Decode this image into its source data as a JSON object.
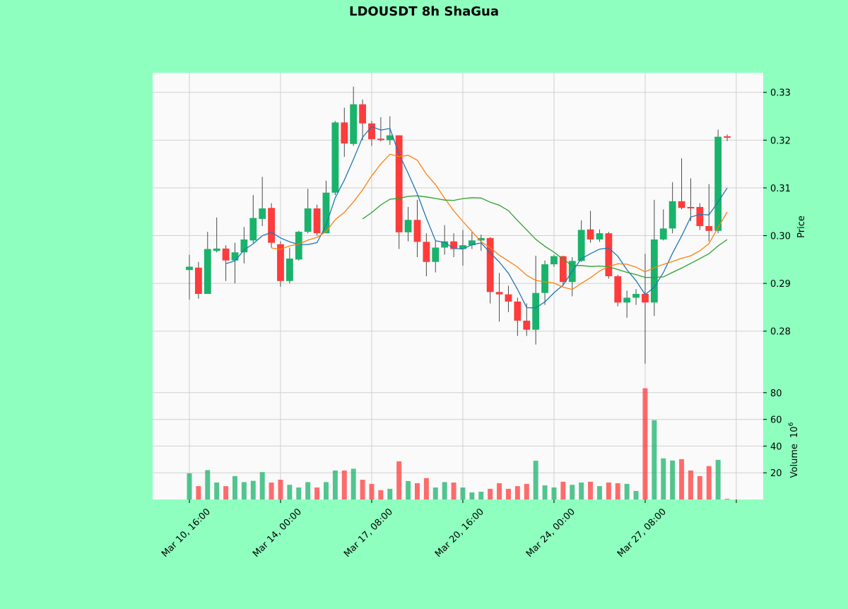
{
  "chart_data": {
    "type": "candlestick",
    "title": "LDOUSDT 8h ShaGua",
    "ylabel": "Price",
    "volume_label": "Volume",
    "volume_scale_base": "10",
    "volume_scale_exponent": "6",
    "up_color": "#19b36b",
    "down_color": "#ff3b3b",
    "wick_color": "#4a4a4a",
    "grid": true,
    "open": [
      0.2928,
      0.2933,
      0.2878,
      0.2968,
      0.2973,
      0.2948,
      0.2965,
      0.299,
      0.3035,
      0.3058,
      0.2982,
      0.2905,
      0.295,
      0.3008,
      0.3057,
      0.3005,
      0.309,
      0.3237,
      0.3192,
      0.3275,
      0.3235,
      0.3203,
      0.32,
      0.321,
      0.3007,
      0.3033,
      0.2987,
      0.2945,
      0.2975,
      0.2988,
      0.2972,
      0.298,
      0.299,
      0.2995,
      0.2882,
      0.2877,
      0.2862,
      0.2822,
      0.2803,
      0.288,
      0.294,
      0.2957,
      0.2903,
      0.2947,
      0.3013,
      0.2992,
      0.3005,
      0.2915,
      0.286,
      0.287,
      0.2878,
      0.286,
      0.2992,
      0.3015,
      0.3072,
      0.306,
      0.306,
      0.302,
      0.301,
      0.3208
    ],
    "high": [
      0.296,
      0.2945,
      0.3008,
      0.3038,
      0.298,
      0.2985,
      0.3018,
      0.3085,
      0.3123,
      0.3068,
      0.2988,
      0.2975,
      0.301,
      0.3098,
      0.3065,
      0.3115,
      0.324,
      0.3268,
      0.3312,
      0.3285,
      0.324,
      0.3248,
      0.325,
      0.321,
      0.306,
      0.3075,
      0.3005,
      0.299,
      0.3022,
      0.3005,
      0.3012,
      0.3007,
      0.3002,
      0.2997,
      0.2922,
      0.2895,
      0.287,
      0.2858,
      0.2958,
      0.2948,
      0.296,
      0.2958,
      0.2955,
      0.3032,
      0.3052,
      0.3013,
      0.3008,
      0.2918,
      0.2885,
      0.2888,
      0.2962,
      0.3075,
      0.3055,
      0.3112,
      0.3162,
      0.312,
      0.3068,
      0.3108,
      0.3222,
      0.3212
    ],
    "low": [
      0.2866,
      0.2868,
      0.2878,
      0.2965,
      0.2905,
      0.29,
      0.2942,
      0.2985,
      0.302,
      0.2975,
      0.2893,
      0.29,
      0.2948,
      0.3005,
      0.3,
      0.3005,
      0.3085,
      0.3165,
      0.3188,
      0.32,
      0.3188,
      0.3197,
      0.319,
      0.2972,
      0.2988,
      0.2955,
      0.2915,
      0.2923,
      0.296,
      0.2955,
      0.2937,
      0.2972,
      0.2968,
      0.2858,
      0.282,
      0.284,
      0.279,
      0.279,
      0.2772,
      0.2855,
      0.2935,
      0.2895,
      0.2873,
      0.2945,
      0.2985,
      0.2987,
      0.291,
      0.2852,
      0.2828,
      0.2855,
      0.2732,
      0.2832,
      0.299,
      0.3005,
      0.3055,
      0.303,
      0.3012,
      0.2988,
      0.3005,
      0.3198
    ],
    "close": [
      0.2935,
      0.2878,
      0.2972,
      0.2973,
      0.2948,
      0.2965,
      0.2992,
      0.3037,
      0.3057,
      0.2985,
      0.2905,
      0.2952,
      0.3008,
      0.3057,
      0.3005,
      0.309,
      0.3237,
      0.3193,
      0.3275,
      0.3235,
      0.3202,
      0.32,
      0.321,
      0.3007,
      0.3033,
      0.2987,
      0.2945,
      0.2975,
      0.2988,
      0.2972,
      0.298,
      0.299,
      0.2995,
      0.2882,
      0.2877,
      0.2862,
      0.2822,
      0.2803,
      0.288,
      0.294,
      0.2957,
      0.2903,
      0.2947,
      0.3012,
      0.2992,
      0.3005,
      0.2915,
      0.286,
      0.287,
      0.2878,
      0.286,
      0.2992,
      0.3015,
      0.3072,
      0.3058,
      0.3057,
      0.302,
      0.301,
      0.3207,
      0.3205
    ],
    "volume": [
      19.6,
      10,
      22,
      12.7,
      10,
      17.5,
      13,
      14,
      20.5,
      12.7,
      14.8,
      11,
      9,
      13,
      9,
      13,
      21.7,
      21.7,
      23,
      14.8,
      11.7,
      7,
      8,
      28.6,
      13.8,
      12.2,
      16,
      9,
      13,
      12.7,
      9,
      5.3,
      5.8,
      8,
      12.2,
      8,
      10,
      11.7,
      29,
      10.6,
      9,
      13.3,
      11,
      12.7,
      13.3,
      10,
      12.7,
      12.2,
      11.7,
      6.4,
      83.3,
      59.4,
      30.8,
      29.2,
      30.2,
      21.7,
      17.5,
      25,
      29.7,
      0.5
    ],
    "moving_averages": [
      {
        "period": 5,
        "color": "#1f77b4"
      },
      {
        "period": 10,
        "color": "#ff7f0e"
      },
      {
        "period": 20,
        "color": "#2ca02c"
      }
    ],
    "xlim": [
      -4.03,
      62.95
    ],
    "xticks": [
      {
        "value": 0,
        "label": "Mar 10, 16:00"
      },
      {
        "value": 10,
        "label": "Mar 14, 00:00"
      },
      {
        "value": 20,
        "label": "Mar 17, 08:00"
      },
      {
        "value": 30,
        "label": "Mar 20, 16:00"
      },
      {
        "value": 40,
        "label": "Mar 24, 00:00"
      },
      {
        "value": 50,
        "label": "Mar 27, 08:00"
      },
      {
        "value": 60,
        "label": null
      }
    ],
    "ylim": [
      0.2702,
      0.3341
    ],
    "yticks": [
      0.28,
      0.29,
      {
        "value": 0.3,
        "label": "0.30"
      },
      0.31,
      0.32,
      0.33
    ],
    "volume_ylim": [
      0,
      91
    ],
    "volume_yticks": [
      20,
      40,
      60,
      80
    ]
  }
}
